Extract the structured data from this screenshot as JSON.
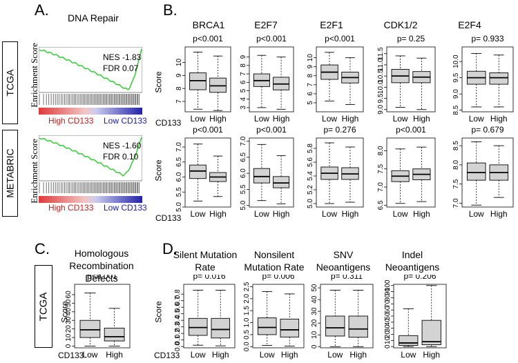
{
  "panel_labels": {
    "a": "A.",
    "b": "B.",
    "c": "C.",
    "d": "D."
  },
  "cohorts": {
    "tcga": "TCGA",
    "metabric": "METABRIC"
  },
  "gsea": {
    "title": "DNA Repair",
    "ylabel": "Enrichment Score",
    "high_label": "High CD133",
    "low_label": "Low CD133",
    "tcga": {
      "nes": "NES -1.83",
      "fdr": "FDR  0.07"
    },
    "metabric": {
      "nes": "NES -1.60",
      "fdr": "FDR  0.10"
    },
    "colors": {
      "curve": "#33cc33",
      "high": "#d01818",
      "low": "#1a1aaa"
    }
  },
  "common": {
    "score_label": "Score",
    "cd133_label": "CD133",
    "group_labels": [
      "Low",
      "High"
    ],
    "box_fill": "#d3d3d3"
  },
  "chart_data": [
    {
      "id": "brca1_tcga",
      "type": "box",
      "title": "BRCA1",
      "pval": "p<0.001",
      "ylim": [
        6.2,
        11.2
      ],
      "ticks": [
        7,
        8,
        9,
        10
      ],
      "groups": [
        {
          "name": "Low",
          "whisker_low": 6.4,
          "q1": 7.9,
          "median": 8.6,
          "q3": 9.2,
          "whisker_high": 10.8
        },
        {
          "name": "High",
          "whisker_low": 6.3,
          "q1": 7.7,
          "median": 8.2,
          "q3": 8.8,
          "whisker_high": 10.5
        }
      ]
    },
    {
      "id": "e2f7_tcga",
      "type": "box",
      "title": "E2F7",
      "pval": "p<0.001",
      "ylim": [
        2.5,
        10.2
      ],
      "ticks": [
        3,
        4,
        5,
        6,
        7,
        8,
        9
      ],
      "groups": [
        {
          "name": "Low",
          "whisker_low": 3.0,
          "q1": 5.5,
          "median": 6.2,
          "q3": 7.0,
          "whisker_high": 9.2
        },
        {
          "name": "High",
          "whisker_low": 2.8,
          "q1": 5.1,
          "median": 5.8,
          "q3": 6.6,
          "whisker_high": 9.0
        }
      ]
    },
    {
      "id": "e2f1_tcga",
      "type": "box",
      "title": "E2F1",
      "pval": "p<0.001",
      "ylim": [
        4.0,
        11.2
      ],
      "ticks": [
        5,
        6,
        7,
        8,
        9,
        10
      ],
      "groups": [
        {
          "name": "Low",
          "whisker_low": 5.2,
          "q1": 7.6,
          "median": 8.4,
          "q3": 9.2,
          "whisker_high": 10.6
        },
        {
          "name": "High",
          "whisker_low": 4.8,
          "q1": 7.2,
          "median": 7.8,
          "q3": 8.4,
          "whisker_high": 10.0
        }
      ]
    },
    {
      "id": "cdk12_tcga",
      "type": "box",
      "title": "CDK1/2",
      "pval": "p= 0.25",
      "ylim": [
        8.9,
        11.8
      ],
      "ticks": [
        9.0,
        9.5,
        10.0,
        10.5,
        11.0,
        11.5
      ],
      "groups": [
        {
          "name": "Low",
          "whisker_low": 9.1,
          "q1": 10.2,
          "median": 10.5,
          "q3": 10.8,
          "whisker_high": 11.4
        },
        {
          "name": "High",
          "whisker_low": 9.0,
          "q1": 10.2,
          "median": 10.45,
          "q3": 10.7,
          "whisker_high": 11.3
        }
      ]
    },
    {
      "id": "e2f4_tcga",
      "type": "box",
      "title": "E2F4",
      "pval": "p= 0.933",
      "ylim": [
        8.45,
        10.45
      ],
      "ticks": [
        8.5,
        9.0,
        9.5,
        10.0
      ],
      "groups": [
        {
          "name": "Low",
          "whisker_low": 8.6,
          "q1": 9.3,
          "median": 9.5,
          "q3": 9.7,
          "whisker_high": 10.25
        },
        {
          "name": "High",
          "whisker_low": 8.6,
          "q1": 9.3,
          "median": 9.5,
          "q3": 9.65,
          "whisker_high": 10.2
        }
      ]
    },
    {
      "id": "brca1_metabric",
      "type": "box",
      "title": "",
      "pval": "p<0.001",
      "ylim": [
        5.0,
        7.3
      ],
      "ticks": [
        5.0,
        5.5,
        6.0,
        6.5,
        7.0
      ],
      "groups": [
        {
          "name": "Low",
          "whisker_low": 5.2,
          "q1": 5.95,
          "median": 6.2,
          "q3": 6.4,
          "whisker_high": 7.1
        },
        {
          "name": "High",
          "whisker_low": 5.35,
          "q1": 5.85,
          "median": 6.0,
          "q3": 6.15,
          "whisker_high": 6.7
        }
      ]
    },
    {
      "id": "e2f7_metabric",
      "type": "box",
      "title": "",
      "pval": "p<0.001",
      "ylim": [
        4.95,
        7.1
      ],
      "ticks": [
        5.0,
        5.5,
        6.0,
        6.5,
        7.0
      ],
      "groups": [
        {
          "name": "Low",
          "whisker_low": 5.15,
          "q1": 5.7,
          "median": 5.9,
          "q3": 6.15,
          "whisker_high": 6.9
        },
        {
          "name": "High",
          "whisker_low": 5.05,
          "q1": 5.55,
          "median": 5.7,
          "q3": 5.9,
          "whisker_high": 6.55
        }
      ]
    },
    {
      "id": "e2f1_metabric",
      "type": "box",
      "title": "",
      "pval": "p= 0.276",
      "ylim": [
        4.95,
        5.95
      ],
      "ticks": [
        5.0,
        5.2,
        5.4,
        5.6,
        5.8
      ],
      "groups": [
        {
          "name": "Low",
          "whisker_low": 5.0,
          "q1": 5.35,
          "median": 5.44,
          "q3": 5.53,
          "whisker_high": 5.88
        },
        {
          "name": "High",
          "whisker_low": 5.02,
          "q1": 5.35,
          "median": 5.43,
          "q3": 5.52,
          "whisker_high": 5.82
        }
      ]
    },
    {
      "id": "cdk12_metabric",
      "type": "box",
      "title": "",
      "pval": "p<0.001",
      "ylim": [
        6.45,
        8.35
      ],
      "ticks": [
        6.5,
        7.0,
        7.5,
        8.0
      ],
      "groups": [
        {
          "name": "Low",
          "whisker_low": 6.55,
          "q1": 7.15,
          "median": 7.3,
          "q3": 7.45,
          "whisker_high": 8.05
        },
        {
          "name": "High",
          "whisker_low": 6.6,
          "q1": 7.2,
          "median": 7.35,
          "q3": 7.5,
          "whisker_high": 8.1
        }
      ]
    },
    {
      "id": "e2f4_metabric",
      "type": "box",
      "title": "",
      "pval": "p= 0.679",
      "ylim": [
        6.9,
        8.7
      ],
      "ticks": [
        7.0,
        7.5,
        8.0,
        8.5
      ],
      "groups": [
        {
          "name": "Low",
          "whisker_low": 6.95,
          "q1": 7.6,
          "median": 7.8,
          "q3": 8.05,
          "whisker_high": 8.6
        },
        {
          "name": "High",
          "whisker_low": 7.15,
          "q1": 7.6,
          "median": 7.8,
          "q3": 8.0,
          "whisker_high": 8.5
        }
      ]
    },
    {
      "id": "hrd_tcga",
      "type": "box",
      "title": "Homologous Recombination Defects",
      "pval": "p<0.001",
      "ylim": [
        -2,
        72
      ],
      "ticks": [
        0,
        10,
        20,
        30,
        40,
        50,
        60
      ],
      "groups": [
        {
          "name": "Low",
          "whisker_low": 0,
          "q1": 10,
          "median": 19,
          "q3": 30,
          "whisker_high": 62
        },
        {
          "name": "High",
          "whisker_low": 0,
          "q1": 6,
          "median": 11,
          "q3": 21,
          "whisker_high": 44
        }
      ]
    },
    {
      "id": "silent_tcga",
      "type": "box",
      "title": "Silent Mutation Rate",
      "pval": "p= 0.016",
      "ylim": [
        -0.02,
        0.95
      ],
      "ticks": [
        0.0,
        0.1,
        0.2,
        0.3,
        0.4,
        0.5,
        0.6,
        0.7,
        0.8
      ],
      "groups": [
        {
          "name": "Low",
          "whisker_low": 0.02,
          "q1": 0.17,
          "median": 0.29,
          "q3": 0.43,
          "whisker_high": 0.86
        },
        {
          "name": "High",
          "whisker_low": 0.01,
          "q1": 0.13,
          "median": 0.26,
          "q3": 0.43,
          "whisker_high": 0.86
        }
      ]
    },
    {
      "id": "nonsilent_tcga",
      "type": "box",
      "title": "Nonsilent Mutation Rate",
      "pval": "p= 0.006",
      "ylim": [
        -0.05,
        2.6
      ],
      "ticks": [
        0.0,
        0.5,
        1.0,
        1.5,
        2.0,
        2.5
      ],
      "groups": [
        {
          "name": "Low",
          "whisker_low": 0.05,
          "q1": 0.5,
          "median": 0.8,
          "q3": 1.2,
          "whisker_high": 2.3
        },
        {
          "name": "High",
          "whisker_low": 0.02,
          "q1": 0.4,
          "median": 0.7,
          "q3": 1.15,
          "whisker_high": 2.2
        }
      ]
    },
    {
      "id": "snv_tcga",
      "type": "box",
      "title": "SNV Neoantigens",
      "pval": "p= 0.311",
      "ylim": [
        -1,
        53
      ],
      "ticks": [
        0,
        10,
        20,
        30,
        40,
        50
      ],
      "groups": [
        {
          "name": "Low",
          "whisker_low": 0,
          "q1": 9,
          "median": 16,
          "q3": 26,
          "whisker_high": 48
        },
        {
          "name": "High",
          "whisker_low": 0,
          "q1": 8,
          "median": 15,
          "q3": 26,
          "whisker_high": 48
        }
      ]
    },
    {
      "id": "indel_tcga",
      "type": "box",
      "title": "Indel Neoantigens",
      "pval": "p= 0.206",
      "ylim": [
        -2,
        102
      ],
      "ticks": [
        0,
        10,
        20,
        30,
        40,
        50,
        60,
        70,
        80,
        90,
        100
      ],
      "groups": [
        {
          "name": "Low",
          "whisker_low": 0,
          "q1": 2,
          "median": 6,
          "q3": 18,
          "whisker_high": 62
        },
        {
          "name": "High",
          "whisker_low": 0,
          "q1": 3,
          "median": 8,
          "q3": 43,
          "whisker_high": 100
        }
      ]
    }
  ]
}
